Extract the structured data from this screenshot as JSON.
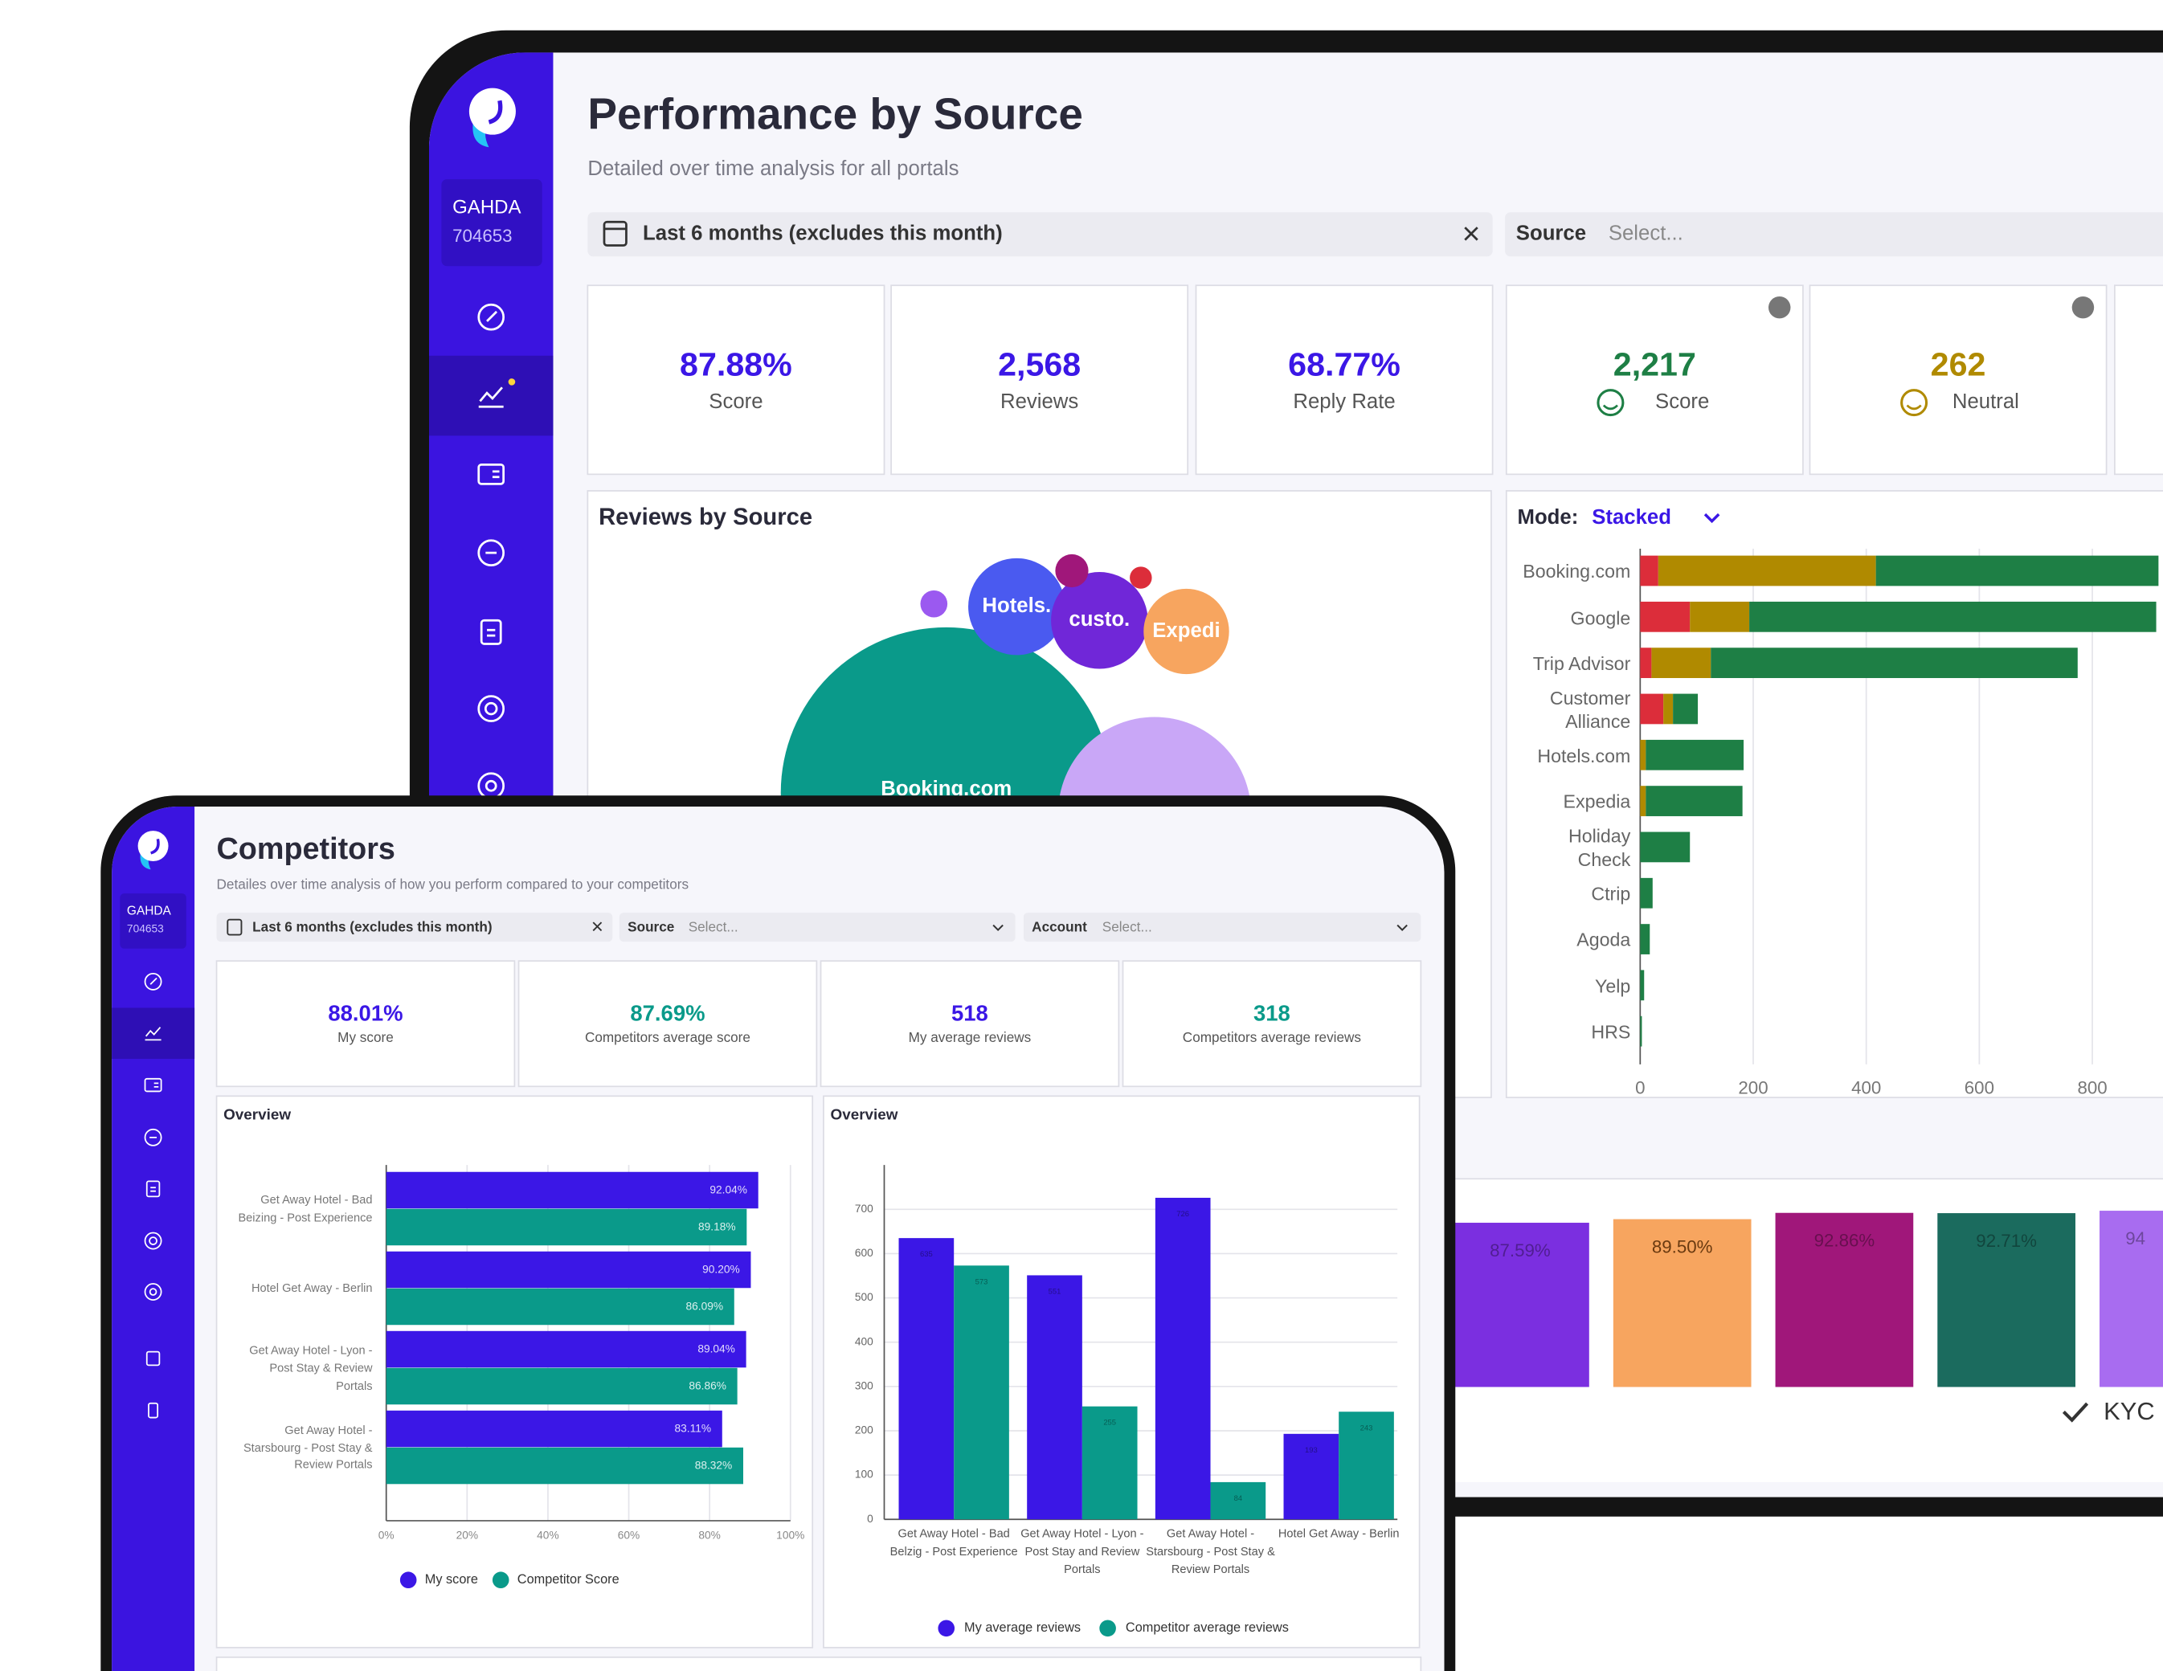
{
  "back": {
    "org_name": "GAHDA",
    "org_id": "704653",
    "title": "Performance by Source",
    "subtitle": "Detailed over time analysis for all portals",
    "date_filter": "Last 6 months (excludes this month)",
    "source_label": "Source",
    "source_placeholder": "Select...",
    "kpis": [
      {
        "value": "87.88%",
        "label": "Score"
      },
      {
        "value": "2,568",
        "label": "Reviews"
      },
      {
        "value": "68.77%",
        "label": "Reply Rate"
      },
      {
        "value": "2,217",
        "label": "Score"
      },
      {
        "value": "262",
        "label": "Neutral"
      }
    ],
    "bubble_chart": {
      "type": "bubble",
      "title": "Reviews by Source",
      "labels": [
        "Booking.com",
        null,
        "Hotels.",
        "custo.",
        "Expedi",
        null,
        null,
        null
      ],
      "values": [
        900,
        306,
        77,
        77,
        60,
        6,
        9,
        4
      ],
      "colors": [
        "#0a9a8a",
        "#c9a7f7",
        "#4a5af0",
        "#7027d8",
        "#f7a55f",
        "#9b59f0",
        "#a0177a",
        "#dc2d3a"
      ]
    },
    "stacked_chart": {
      "type": "bar",
      "orientation": "horizontal",
      "stacked": true,
      "mode_label": "Mode:",
      "mode": "Stacked",
      "categories": [
        "Booking.com",
        "Google",
        "Trip Advisor",
        "Customer Alliance",
        "Hotels.com",
        "Expedia",
        "Holiday Check",
        "Ctrip",
        "Agoda",
        "Yelp",
        "HRS"
      ],
      "series": [
        {
          "color": "#dc2d3a",
          "values": [
            32,
            88,
            20,
            41,
            0,
            0,
            0,
            0,
            0,
            0,
            0
          ]
        },
        {
          "color": "#b08a00",
          "values": [
            385,
            105,
            105,
            17,
            10,
            10,
            0,
            0,
            0,
            0,
            0
          ]
        },
        {
          "color": "#1e7f45",
          "values": [
            500,
            720,
            649,
            44,
            173,
            171,
            88,
            22,
            17,
            7,
            3
          ]
        }
      ],
      "xlim": [
        0,
        925
      ],
      "xticks": [
        0,
        200,
        400,
        600,
        800
      ],
      "grid": true
    },
    "score_chart": {
      "type": "bar",
      "values": [
        87.59,
        89.5,
        92.86,
        92.71,
        94
      ],
      "value_labels": [
        "87.59%",
        "89.50%",
        "92.86%",
        "92.71%",
        "94"
      ],
      "colors": [
        "#7b2fe0",
        "#f7a55f",
        "#a0177a",
        "#1b6b5e",
        "#a86cf0"
      ],
      "ylim": [
        0,
        100
      ]
    },
    "kyc_label": "KYC"
  },
  "front": {
    "org_name": "GAHDA",
    "org_id": "704653",
    "title": "Competitors",
    "subtitle": "Detailes over time analysis of how you perform compared to your competitors",
    "date_filter": "Last 6 months (excludes this month)",
    "source_label": "Source",
    "source_placeholder": "Select...",
    "account_label": "Account",
    "account_placeholder": "Select...",
    "kpis": [
      {
        "value": "88.01%",
        "label": "My score"
      },
      {
        "value": "87.69%",
        "label": "Competitors average score"
      },
      {
        "value": "518",
        "label": "My average reviews"
      },
      {
        "value": "318",
        "label": "Competitors average reviews"
      }
    ],
    "score_chart": {
      "type": "bar",
      "orientation": "horizontal",
      "title": "Overview",
      "categories": [
        "Get Away Hotel - Bad Beizing - Post Experience",
        "Hotel Get Away - Berlin",
        "Get Away Hotel - Lyon - Post Stay & Review Portals",
        "Get Away Hotel - Starsbourg - Post Stay & Review Portals"
      ],
      "series": [
        {
          "name": "My score",
          "color": "#3b17e6",
          "values": [
            92.04,
            90.2,
            89.04,
            83.11
          ],
          "value_labels": [
            "92.04%",
            "90.20%",
            "89.04%",
            "83.11%"
          ]
        },
        {
          "name": "Competitor Score",
          "color": "#0a9a8a",
          "values": [
            89.18,
            86.09,
            86.86,
            88.32
          ],
          "value_labels": [
            "89.18%",
            "86.09%",
            "86.86%",
            "88.32%"
          ]
        }
      ],
      "xlim": [
        0,
        100
      ],
      "xticks": [
        {
          "value": 0,
          "label": "0%"
        },
        {
          "value": 20,
          "label": "20%"
        },
        {
          "value": 40,
          "label": "40%"
        },
        {
          "value": 60,
          "label": "60%"
        },
        {
          "value": 80,
          "label": "80%"
        },
        {
          "value": 100,
          "label": "100%"
        }
      ],
      "grid": true
    },
    "reviews_chart": {
      "type": "bar",
      "title": "Overview",
      "categories": [
        "Get Away Hotel - Bad Belzig - Post Experience",
        "Get Away Hotel - Lyon - Post Stay and Review Portals",
        "Get Away Hotel - Starsbourg - Post Stay & Review Portals",
        "Hotel Get Away - Berlin"
      ],
      "series": [
        {
          "name": "My average reviews",
          "color": "#3b17e6",
          "values": [
            635,
            551,
            726,
            193
          ]
        },
        {
          "name": "Competitor average reviews",
          "color": "#0a9a8a",
          "values": [
            573,
            255,
            84,
            243
          ]
        }
      ],
      "ylim": [
        0,
        800
      ],
      "yticks": [
        0,
        100,
        200,
        300,
        400,
        500,
        600,
        700
      ],
      "grid": true
    }
  }
}
